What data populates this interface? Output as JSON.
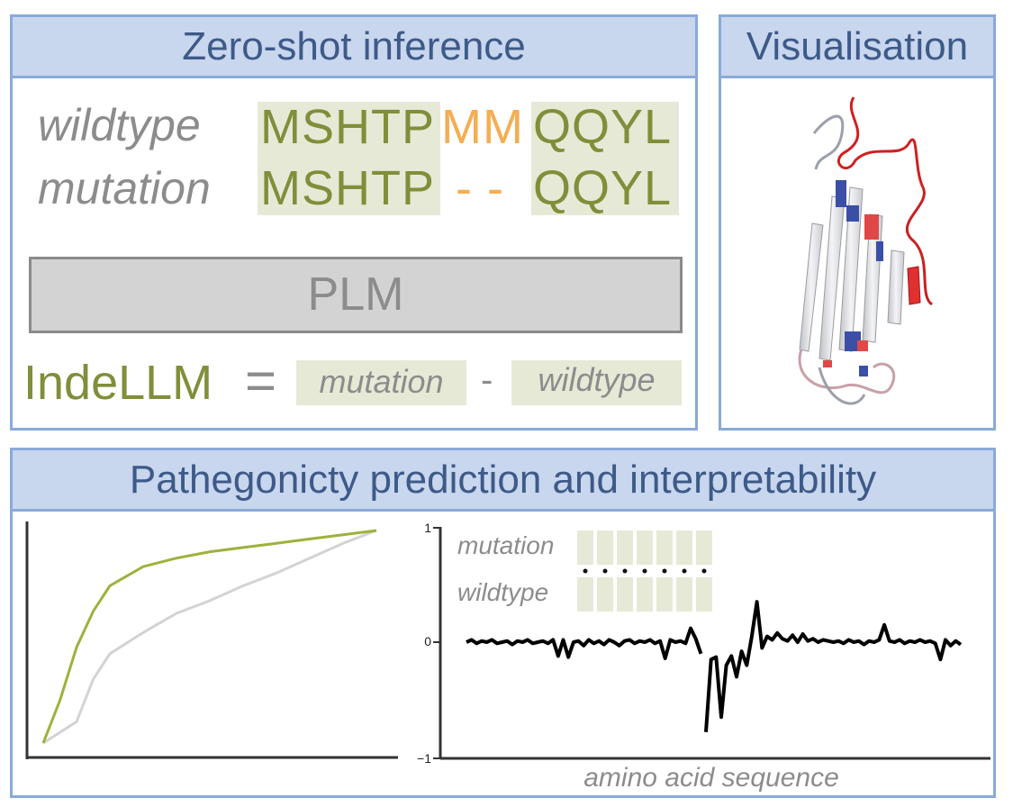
{
  "zero_shot": {
    "title": "Zero-shot inference",
    "wildtype_label": "wildtype",
    "mutation_label": "mutation",
    "wildtype_seq": {
      "left": "MSHTP",
      "mid": "MM",
      "right": "QQYL"
    },
    "mutation_seq": {
      "left": "MSHTP",
      "mid": "- -",
      "right": "QQYL"
    },
    "plm_label": "PLM",
    "formula": {
      "name": "IndeLLM",
      "equals": "=",
      "term1": "mutation",
      "minus": "-",
      "term2": "wildtype"
    }
  },
  "visualisation": {
    "title": "Visualisation"
  },
  "prediction": {
    "title": "Pathegonicty prediction and interpretability",
    "inset_mutation_label": "mutation",
    "inset_wildtype_label": "wildtype",
    "xlabel": "amino acid sequence"
  },
  "chart_data": [
    {
      "type": "line",
      "title": "",
      "xlabel": "",
      "ylabel": "",
      "series": [
        {
          "color": "#9cb23c",
          "x": [
            0,
            0.05,
            0.1,
            0.15,
            0.2,
            0.3,
            0.4,
            0.5,
            0.6,
            0.7,
            0.8,
            0.9,
            1.0
          ],
          "y": [
            0,
            0.2,
            0.45,
            0.62,
            0.74,
            0.83,
            0.87,
            0.9,
            0.92,
            0.94,
            0.96,
            0.98,
            1.0
          ]
        },
        {
          "color": "#d3d3d3",
          "x": [
            0,
            0.1,
            0.15,
            0.2,
            0.3,
            0.4,
            0.5,
            0.6,
            0.7,
            0.8,
            0.9,
            1.0
          ],
          "y": [
            0,
            0.1,
            0.3,
            0.42,
            0.52,
            0.61,
            0.67,
            0.74,
            0.8,
            0.87,
            0.94,
            1.0
          ]
        }
      ]
    },
    {
      "type": "line",
      "title": "",
      "xlabel": "amino acid sequence",
      "ylabel": "",
      "ylim": [
        -1,
        1
      ],
      "yticks": [
        "1",
        "0",
        "−1"
      ],
      "series": [
        {
          "color": "#000000",
          "y": [
            0,
            0.02,
            -0.01,
            0.01,
            0,
            0.02,
            -0.01,
            0,
            0.01,
            -0.02,
            0.01,
            0,
            0.02,
            -0.01,
            0,
            0.01,
            -0.01,
            0.02,
            -0.12,
            0.02,
            -0.13,
            0,
            0.01,
            -0.03,
            0.02,
            -0.01,
            0.01,
            -0.02,
            0.02,
            0,
            -0.03,
            0.01,
            0.02,
            -0.01,
            0.01,
            0,
            0.02,
            -0.01,
            0.01,
            -0.14,
            0.02,
            0,
            0.01,
            -0.01,
            0.12,
            0.03,
            -0.1,
            -0.78,
            -0.15,
            -0.13,
            -0.65,
            -0.2,
            -0.12,
            -0.3,
            -0.08,
            -0.2,
            0.05,
            0.35,
            -0.05,
            0.05,
            0.02,
            0.08,
            0.03,
            0.01,
            0.06,
            0,
            0.07,
            0.01,
            0.03,
            0,
            0.02,
            0.01,
            0,
            0.01,
            -0.01,
            0.02,
            0,
            0.01,
            -0.02,
            0.01,
            0,
            0.02,
            0.15,
            0.01,
            0,
            0.02,
            -0.01,
            0.01,
            0,
            0.02,
            0,
            0.01,
            -0.01,
            -0.15,
            0.02,
            -0.03,
            0.01,
            -0.02
          ]
        }
      ]
    }
  ]
}
